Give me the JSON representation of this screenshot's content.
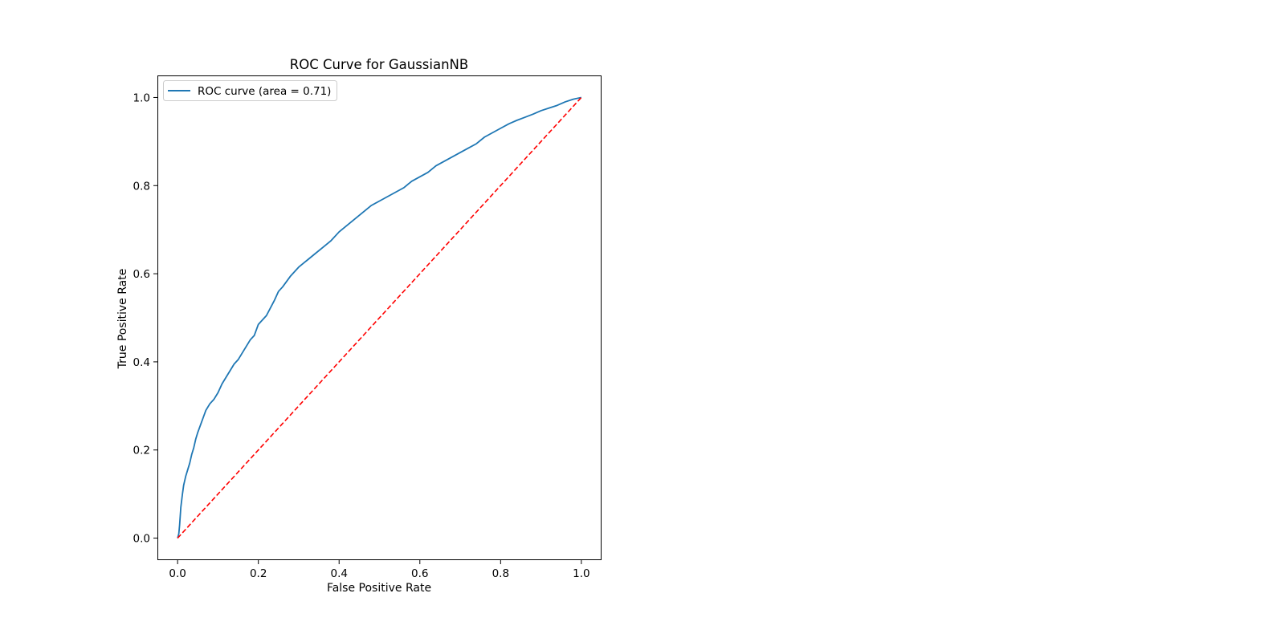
{
  "chart_data": {
    "type": "line",
    "title": "ROC Curve for GaussianNB",
    "xlabel": "False Positive Rate",
    "ylabel": "True Positive Rate",
    "xlim": [
      -0.05,
      1.05
    ],
    "ylim": [
      -0.05,
      1.05
    ],
    "x_ticks": [
      0.0,
      0.2,
      0.4,
      0.6,
      0.8,
      1.0
    ],
    "y_ticks": [
      0.0,
      0.2,
      0.4,
      0.6,
      0.8,
      1.0
    ],
    "x_tick_labels": [
      "0.0",
      "0.2",
      "0.4",
      "0.6",
      "0.8",
      "1.0"
    ],
    "y_tick_labels": [
      "0.0",
      "0.2",
      "0.4",
      "0.6",
      "0.8",
      "1.0"
    ],
    "grid": false,
    "legend": {
      "position": "upper-left",
      "entries": [
        "ROC curve (area = 0.71)"
      ]
    },
    "series": [
      {
        "name": "ROC curve (area = 0.71)",
        "style": "solid",
        "color": "#1f77b4",
        "x": [
          0.0,
          0.003,
          0.005,
          0.008,
          0.012,
          0.015,
          0.02,
          0.025,
          0.03,
          0.035,
          0.04,
          0.045,
          0.05,
          0.06,
          0.07,
          0.08,
          0.09,
          0.1,
          0.11,
          0.12,
          0.13,
          0.14,
          0.15,
          0.16,
          0.17,
          0.18,
          0.19,
          0.2,
          0.22,
          0.24,
          0.25,
          0.26,
          0.28,
          0.3,
          0.32,
          0.34,
          0.36,
          0.38,
          0.4,
          0.42,
          0.44,
          0.46,
          0.48,
          0.5,
          0.52,
          0.54,
          0.56,
          0.58,
          0.6,
          0.62,
          0.64,
          0.66,
          0.68,
          0.7,
          0.72,
          0.74,
          0.76,
          0.78,
          0.8,
          0.82,
          0.84,
          0.86,
          0.88,
          0.9,
          0.92,
          0.94,
          0.96,
          0.98,
          1.0
        ],
        "y": [
          0.0,
          0.01,
          0.03,
          0.07,
          0.1,
          0.12,
          0.14,
          0.155,
          0.17,
          0.19,
          0.205,
          0.225,
          0.24,
          0.265,
          0.29,
          0.305,
          0.315,
          0.33,
          0.35,
          0.365,
          0.38,
          0.395,
          0.405,
          0.42,
          0.435,
          0.45,
          0.46,
          0.485,
          0.505,
          0.54,
          0.56,
          0.57,
          0.595,
          0.615,
          0.63,
          0.645,
          0.66,
          0.675,
          0.695,
          0.71,
          0.725,
          0.74,
          0.755,
          0.765,
          0.775,
          0.785,
          0.795,
          0.81,
          0.82,
          0.83,
          0.845,
          0.855,
          0.865,
          0.875,
          0.885,
          0.895,
          0.91,
          0.92,
          0.93,
          0.94,
          0.948,
          0.955,
          0.962,
          0.97,
          0.976,
          0.982,
          0.99,
          0.996,
          1.0
        ]
      },
      {
        "style": "dashed",
        "color": "#ff0000",
        "x": [
          0.0,
          1.0
        ],
        "y": [
          0.0,
          1.0
        ]
      }
    ]
  }
}
